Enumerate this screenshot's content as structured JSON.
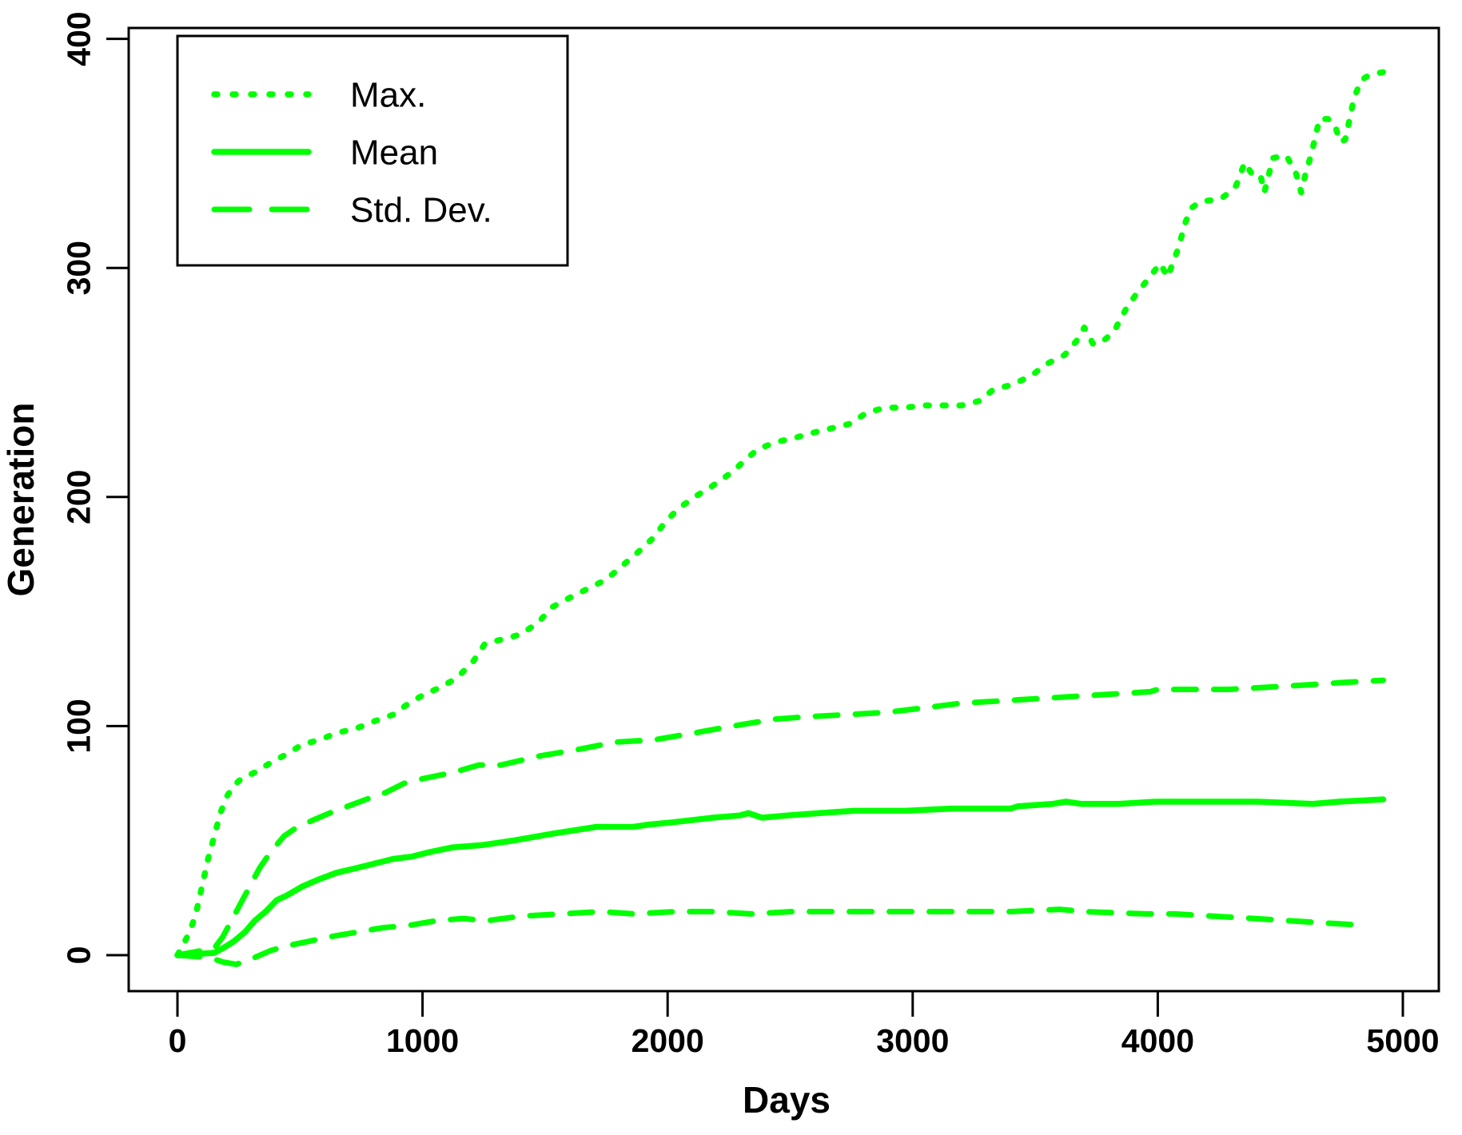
{
  "chart_data": {
    "type": "line",
    "title": "",
    "xlabel": "Days",
    "ylabel": "Generation",
    "xlim": [
      0,
      5000
    ],
    "ylim": [
      0,
      400
    ],
    "x_ticks": [
      0,
      1000,
      2000,
      3000,
      4000,
      5000
    ],
    "y_ticks": [
      0,
      100,
      200,
      300,
      400
    ],
    "grid": false,
    "background_color": "#FFFFFF",
    "axis_color": "#000000",
    "series_color": "#00FF00",
    "legend": {
      "position": "top-left",
      "frame": true,
      "entries": [
        {
          "label": "Max.",
          "style": "dotted"
        },
        {
          "label": "Mean",
          "style": "solid"
        },
        {
          "label": "Std. Dev.",
          "style": "dashed"
        }
      ]
    },
    "series": [
      {
        "name": "Max.",
        "style": "dotted",
        "points": [
          [
            0,
            0
          ],
          [
            50,
            10
          ],
          [
            75,
            18
          ],
          [
            100,
            30
          ],
          [
            125,
            42
          ],
          [
            150,
            52
          ],
          [
            175,
            62
          ],
          [
            200,
            69
          ],
          [
            230,
            74
          ],
          [
            260,
            77
          ],
          [
            320,
            80
          ],
          [
            380,
            84
          ],
          [
            450,
            88
          ],
          [
            510,
            92
          ],
          [
            580,
            94
          ],
          [
            650,
            97
          ],
          [
            730,
            99
          ],
          [
            800,
            102
          ],
          [
            880,
            105
          ],
          [
            945,
            110
          ],
          [
            1010,
            114
          ],
          [
            1075,
            117
          ],
          [
            1140,
            121
          ],
          [
            1205,
            128
          ],
          [
            1255,
            136
          ],
          [
            1330,
            138
          ],
          [
            1400,
            140
          ],
          [
            1470,
            145
          ],
          [
            1530,
            152
          ],
          [
            1600,
            156
          ],
          [
            1675,
            160
          ],
          [
            1750,
            164
          ],
          [
            1815,
            170
          ],
          [
            1880,
            176
          ],
          [
            1940,
            182
          ],
          [
            1990,
            189
          ],
          [
            2045,
            195
          ],
          [
            2110,
            200
          ],
          [
            2185,
            205
          ],
          [
            2265,
            211
          ],
          [
            2315,
            216
          ],
          [
            2370,
            221
          ],
          [
            2445,
            224
          ],
          [
            2525,
            226
          ],
          [
            2590,
            228
          ],
          [
            2670,
            230
          ],
          [
            2745,
            232
          ],
          [
            2815,
            237
          ],
          [
            2890,
            239
          ],
          [
            2965,
            239
          ],
          [
            3050,
            240
          ],
          [
            3130,
            240
          ],
          [
            3200,
            240
          ],
          [
            3275,
            242
          ],
          [
            3330,
            247
          ],
          [
            3405,
            249
          ],
          [
            3485,
            253
          ],
          [
            3545,
            258
          ],
          [
            3620,
            262
          ],
          [
            3675,
            269
          ],
          [
            3700,
            274
          ],
          [
            3735,
            267
          ],
          [
            3765,
            267
          ],
          [
            3820,
            272
          ],
          [
            3870,
            282
          ],
          [
            3915,
            289
          ],
          [
            3960,
            295
          ],
          [
            4010,
            302
          ],
          [
            4040,
            296
          ],
          [
            4085,
            309
          ],
          [
            4110,
            319
          ],
          [
            4135,
            326
          ],
          [
            4175,
            329
          ],
          [
            4255,
            330
          ],
          [
            4280,
            332
          ],
          [
            4320,
            336
          ],
          [
            4355,
            346
          ],
          [
            4390,
            340
          ],
          [
            4420,
            340
          ],
          [
            4435,
            333
          ],
          [
            4470,
            348
          ],
          [
            4525,
            349
          ],
          [
            4565,
            341
          ],
          [
            4585,
            333
          ],
          [
            4605,
            342
          ],
          [
            4625,
            349
          ],
          [
            4660,
            365
          ],
          [
            4695,
            365
          ],
          [
            4720,
            363
          ],
          [
            4745,
            355
          ],
          [
            4765,
            356
          ],
          [
            4785,
            366
          ],
          [
            4800,
            374
          ],
          [
            4830,
            382
          ],
          [
            4860,
            384
          ],
          [
            4895,
            385
          ],
          [
            4950,
            386
          ]
        ]
      },
      {
        "name": "Mean",
        "style": "solid",
        "points": [
          [
            0,
            0
          ],
          [
            150,
            1
          ],
          [
            185,
            3
          ],
          [
            230,
            6
          ],
          [
            275,
            10
          ],
          [
            315,
            15
          ],
          [
            360,
            19
          ],
          [
            405,
            24
          ],
          [
            445,
            26
          ],
          [
            510,
            30
          ],
          [
            575,
            33
          ],
          [
            650,
            36
          ],
          [
            730,
            38
          ],
          [
            805,
            40
          ],
          [
            880,
            42
          ],
          [
            955,
            43
          ],
          [
            1030,
            45
          ],
          [
            1120,
            47
          ],
          [
            1240,
            48
          ],
          [
            1370,
            50
          ],
          [
            1530,
            53
          ],
          [
            1710,
            56
          ],
          [
            1860,
            56
          ],
          [
            1925,
            57
          ],
          [
            2020,
            58
          ],
          [
            2185,
            60
          ],
          [
            2295,
            61
          ],
          [
            2330,
            62
          ],
          [
            2385,
            60
          ],
          [
            2490,
            61
          ],
          [
            2620,
            62
          ],
          [
            2760,
            63
          ],
          [
            2970,
            63
          ],
          [
            3160,
            64
          ],
          [
            3400,
            64
          ],
          [
            3430,
            65
          ],
          [
            3570,
            66
          ],
          [
            3625,
            67
          ],
          [
            3690,
            66
          ],
          [
            3840,
            66
          ],
          [
            3990,
            67
          ],
          [
            4190,
            67
          ],
          [
            4410,
            67
          ],
          [
            4630,
            66
          ],
          [
            4740,
            67
          ],
          [
            4920,
            68
          ]
        ]
      },
      {
        "name": "Std. Dev. (mean + sd)",
        "style": "dashed",
        "points": [
          [
            0,
            0
          ],
          [
            150,
            3
          ],
          [
            185,
            8
          ],
          [
            240,
            19
          ],
          [
            295,
            30
          ],
          [
            335,
            38
          ],
          [
            380,
            45
          ],
          [
            435,
            52
          ],
          [
            490,
            56
          ],
          [
            555,
            59
          ],
          [
            620,
            62
          ],
          [
            695,
            65
          ],
          [
            770,
            68
          ],
          [
            850,
            71
          ],
          [
            925,
            75
          ],
          [
            1000,
            77
          ],
          [
            1090,
            79
          ],
          [
            1165,
            81
          ],
          [
            1230,
            83
          ],
          [
            1320,
            83
          ],
          [
            1480,
            87
          ],
          [
            1645,
            90
          ],
          [
            1785,
            93
          ],
          [
            1945,
            94
          ],
          [
            2110,
            97
          ],
          [
            2265,
            100
          ],
          [
            2435,
            103
          ],
          [
            2560,
            104
          ],
          [
            2730,
            105
          ],
          [
            2895,
            106
          ],
          [
            3050,
            108
          ],
          [
            3200,
            110
          ],
          [
            3360,
            111
          ],
          [
            3515,
            112
          ],
          [
            3670,
            113
          ],
          [
            3820,
            114
          ],
          [
            3970,
            115
          ],
          [
            4000,
            116
          ],
          [
            4135,
            116
          ],
          [
            4290,
            116
          ],
          [
            4450,
            117
          ],
          [
            4615,
            118
          ],
          [
            4755,
            119
          ],
          [
            4920,
            120
          ]
        ]
      },
      {
        "name": "Std. Dev. (mean - sd)",
        "style": "dashed",
        "points": [
          [
            0,
            0
          ],
          [
            130,
            -1
          ],
          [
            185,
            -3
          ],
          [
            240,
            -4
          ],
          [
            315,
            -1
          ],
          [
            380,
            2
          ],
          [
            445,
            4
          ],
          [
            535,
            6
          ],
          [
            620,
            8
          ],
          [
            730,
            10
          ],
          [
            840,
            12
          ],
          [
            945,
            13
          ],
          [
            1055,
            15
          ],
          [
            1165,
            16
          ],
          [
            1260,
            15
          ],
          [
            1400,
            17
          ],
          [
            1565,
            18
          ],
          [
            1730,
            19
          ],
          [
            1860,
            18
          ],
          [
            2035,
            19
          ],
          [
            2185,
            19
          ],
          [
            2340,
            18
          ],
          [
            2510,
            19
          ],
          [
            2655,
            19
          ],
          [
            2800,
            19
          ],
          [
            3000,
            19
          ],
          [
            3200,
            19
          ],
          [
            3400,
            19
          ],
          [
            3600,
            20
          ],
          [
            3700,
            19
          ],
          [
            3950,
            18
          ],
          [
            4070,
            18
          ],
          [
            4230,
            17
          ],
          [
            4390,
            16
          ],
          [
            4540,
            15
          ],
          [
            4690,
            14
          ],
          [
            4850,
            13
          ]
        ]
      }
    ]
  }
}
